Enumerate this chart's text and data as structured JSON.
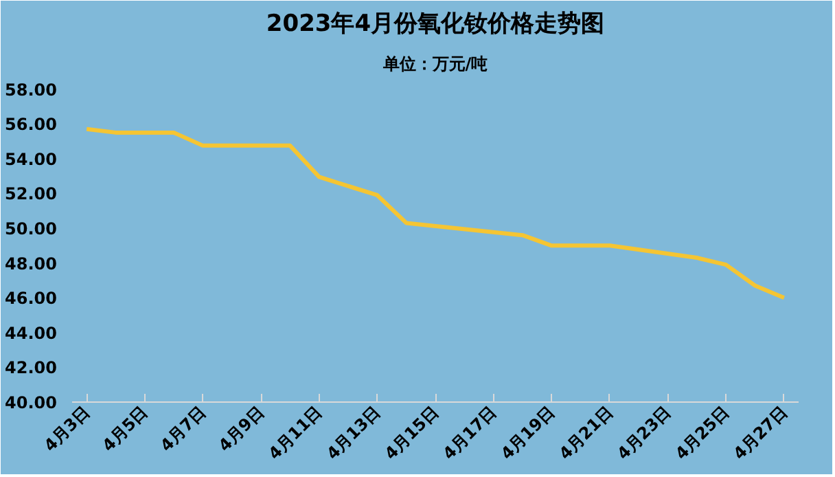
{
  "chart_data": {
    "type": "line",
    "title": "2023年4月份氧化钕价格走势图",
    "subtitle": "单位：万元/吨",
    "x": [
      "2023-04-03",
      "2023-04-04",
      "2023-04-06",
      "2023-04-07",
      "2023-04-10",
      "2023-04-11",
      "2023-04-13",
      "2023-04-14",
      "2023-04-18",
      "2023-04-19",
      "2023-04-21",
      "2023-04-24",
      "2023-04-25",
      "2023-04-26",
      "2023-04-27"
    ],
    "series": [
      {
        "color": "#f5c533",
        "values": [
          55.7,
          55.5,
          55.5,
          54.75,
          54.75,
          52.95,
          51.9,
          50.3,
          49.6,
          49.0,
          49.0,
          48.3,
          47.9,
          46.7,
          46.0
        ]
      }
    ],
    "xlim": [
      "2023-04-02T12:00",
      "2023-04-27T12:00"
    ],
    "xticks": [
      {
        "value": "2023-04-03",
        "label": "4月3日"
      },
      {
        "value": "2023-04-05",
        "label": "4月5日"
      },
      {
        "value": "2023-04-07",
        "label": "4月7日"
      },
      {
        "value": "2023-04-09",
        "label": "4月9日"
      },
      {
        "value": "2023-04-11",
        "label": "4月11日"
      },
      {
        "value": "2023-04-13",
        "label": "4月13日"
      },
      {
        "value": "2023-04-15",
        "label": "4月15日"
      },
      {
        "value": "2023-04-17",
        "label": "4月17日"
      },
      {
        "value": "2023-04-19",
        "label": "4月19日"
      },
      {
        "value": "2023-04-21",
        "label": "4月21日"
      },
      {
        "value": "2023-04-23",
        "label": "4月23日"
      },
      {
        "value": "2023-04-25",
        "label": "4月25日"
      },
      {
        "value": "2023-04-27",
        "label": "4月27日"
      }
    ],
    "ylim": [
      40,
      58.5
    ],
    "yticks": [
      {
        "value": 40,
        "label": "40.00"
      },
      {
        "value": 42,
        "label": "42.00"
      },
      {
        "value": 44,
        "label": "44.00"
      },
      {
        "value": 46,
        "label": "46.00"
      },
      {
        "value": 48,
        "label": "48.00"
      },
      {
        "value": 50,
        "label": "50.00"
      },
      {
        "value": 52,
        "label": "52.00"
      },
      {
        "value": 54,
        "label": "54.00"
      },
      {
        "value": 56,
        "label": "56.00"
      },
      {
        "value": 58,
        "label": "58.00"
      }
    ],
    "grid": false,
    "marker": "none",
    "line_style": "solid"
  }
}
